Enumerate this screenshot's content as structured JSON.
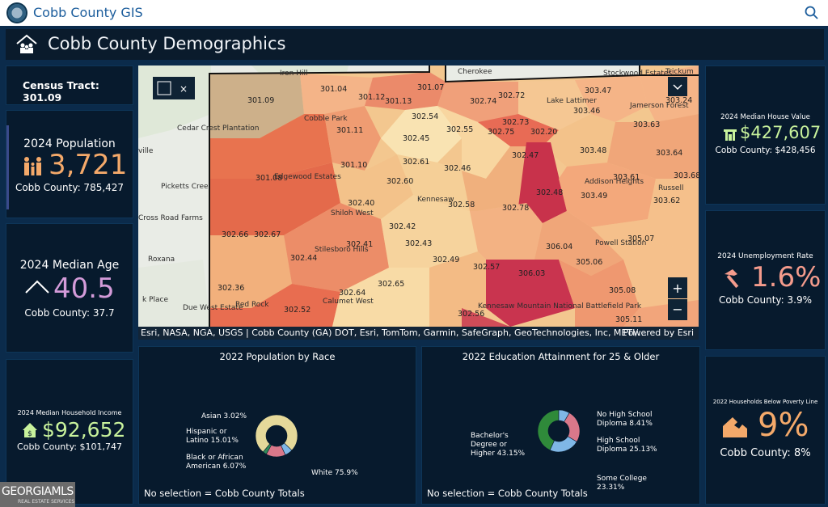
{
  "app_title": "Cobb County GIS",
  "page_title": "Cobb County Demographics",
  "census_tract": "Census Tract: 301.09",
  "population": {
    "label": "2024 Population",
    "value": "3,721",
    "county": "Cobb County: 785,427",
    "color": "#f4a96a"
  },
  "median_age": {
    "label": "2024 Median Age",
    "value": "40.5",
    "county": "Cobb County: 37.7",
    "color": "#d39bd9"
  },
  "household_income": {
    "label": "2024 Median Household Income",
    "value": "$92,652",
    "county": "Cobb County: $101,747",
    "color": "#c8f29c"
  },
  "house_value": {
    "label": "2024 Median House Value",
    "value": "$427,607",
    "county": "Cobb County: $428,456",
    "color": "#c8f29c"
  },
  "unemployment": {
    "label": "2024 Unemployment Rate",
    "value": "1.6%",
    "county": "Cobb County: 3.9%",
    "color": "#f49b8c"
  },
  "poverty": {
    "label": "2022 Households Below Poverty Line",
    "value": "9%",
    "county": "Cobb County: 8%",
    "color": "#f4a96a"
  },
  "map": {
    "attribution": "Esri, NASA, NGA, USGS | Cobb County (GA) DOT, Esri, TomTom, Garmin, SafeGraph, GeoTechnologies, Inc, METI/…",
    "powered_by": "Powered by Esri",
    "tracts": [
      "301.04",
      "301.07",
      "302.74",
      "302.72",
      "303.47",
      "303.24",
      "301.09",
      "301.12",
      "301.13",
      "302.54",
      "302.73",
      "303.46",
      "303.63",
      "301.11",
      "302.55",
      "302.75",
      "302.20",
      "303.48",
      "303.64",
      "301.10",
      "302.61",
      "302.46",
      "302.47",
      "302.45",
      "301.08",
      "302.60",
      "302.48",
      "303.61",
      "303.68",
      "303.49",
      "303.62",
      "302.40",
      "302.58",
      "302.78",
      "302.42",
      "302.66",
      "302.67",
      "302.41",
      "302.43",
      "306.04",
      "305.07",
      "302.44",
      "302.49",
      "302.57",
      "306.03",
      "305.06",
      "302.36",
      "302.64",
      "302.65",
      "305.08",
      "302.52",
      "302.56",
      "305.11"
    ],
    "places": [
      "Iron Hill",
      "Cherokee",
      "Stockwood Estates",
      "Trickum",
      "Cedar Crest Plantation",
      "Picketts Cree",
      "Cross Road Farms",
      "Roxana",
      "Due West Estate",
      "Kennesaw",
      "Shiloh West",
      "Stilesboro Hills",
      "Red Rock",
      "Calumet West",
      "Powell Station",
      "Addison Heights",
      "Russell",
      "Jamerson Forest",
      "Lake Lattimer",
      "Cobble Park",
      "Edgewood Estates",
      "Kennesaw Mountain National Battlefield Park",
      "ville",
      "k Place"
    ]
  },
  "race_chart": {
    "title": "2022 Population by Race",
    "footer": "No selection = Cobb County Totals",
    "chart_data": {
      "type": "pie",
      "title": "2022 Population by Race",
      "slices": [
        {
          "label": "White 75.9%",
          "value": 75.9,
          "color": "#e5d99a"
        },
        {
          "label": "Black or African American 6.07%",
          "value": 6.07,
          "color": "#7fb7e6"
        },
        {
          "label": "Hispanic or Latino 15.01%",
          "value": 15.01,
          "color": "#d9788a"
        },
        {
          "label": "Asian 3.02%",
          "value": 3.02,
          "color": "#2f8a5a"
        }
      ]
    }
  },
  "edu_chart": {
    "title": "2022 Education Attainment for 25 & Older",
    "footer": "No selection = Cobb County Totals",
    "chart_data": {
      "type": "pie",
      "title": "2022 Education Attainment for 25 & Older",
      "slices": [
        {
          "label": "No High School Diploma 8.41%",
          "value": 8.41,
          "color": "#7fb7e6"
        },
        {
          "label": "High School Diploma 25.13%",
          "value": 25.13,
          "color": "#d9788a"
        },
        {
          "label": "Some College 23.31%",
          "value": 23.31,
          "color": "#7fb7e6"
        },
        {
          "label": "Bachelor's Degree or Higher 43.15%",
          "value": 43.15,
          "color": "#2f8a3a"
        }
      ]
    }
  },
  "watermark": "GEORGIAMLS"
}
